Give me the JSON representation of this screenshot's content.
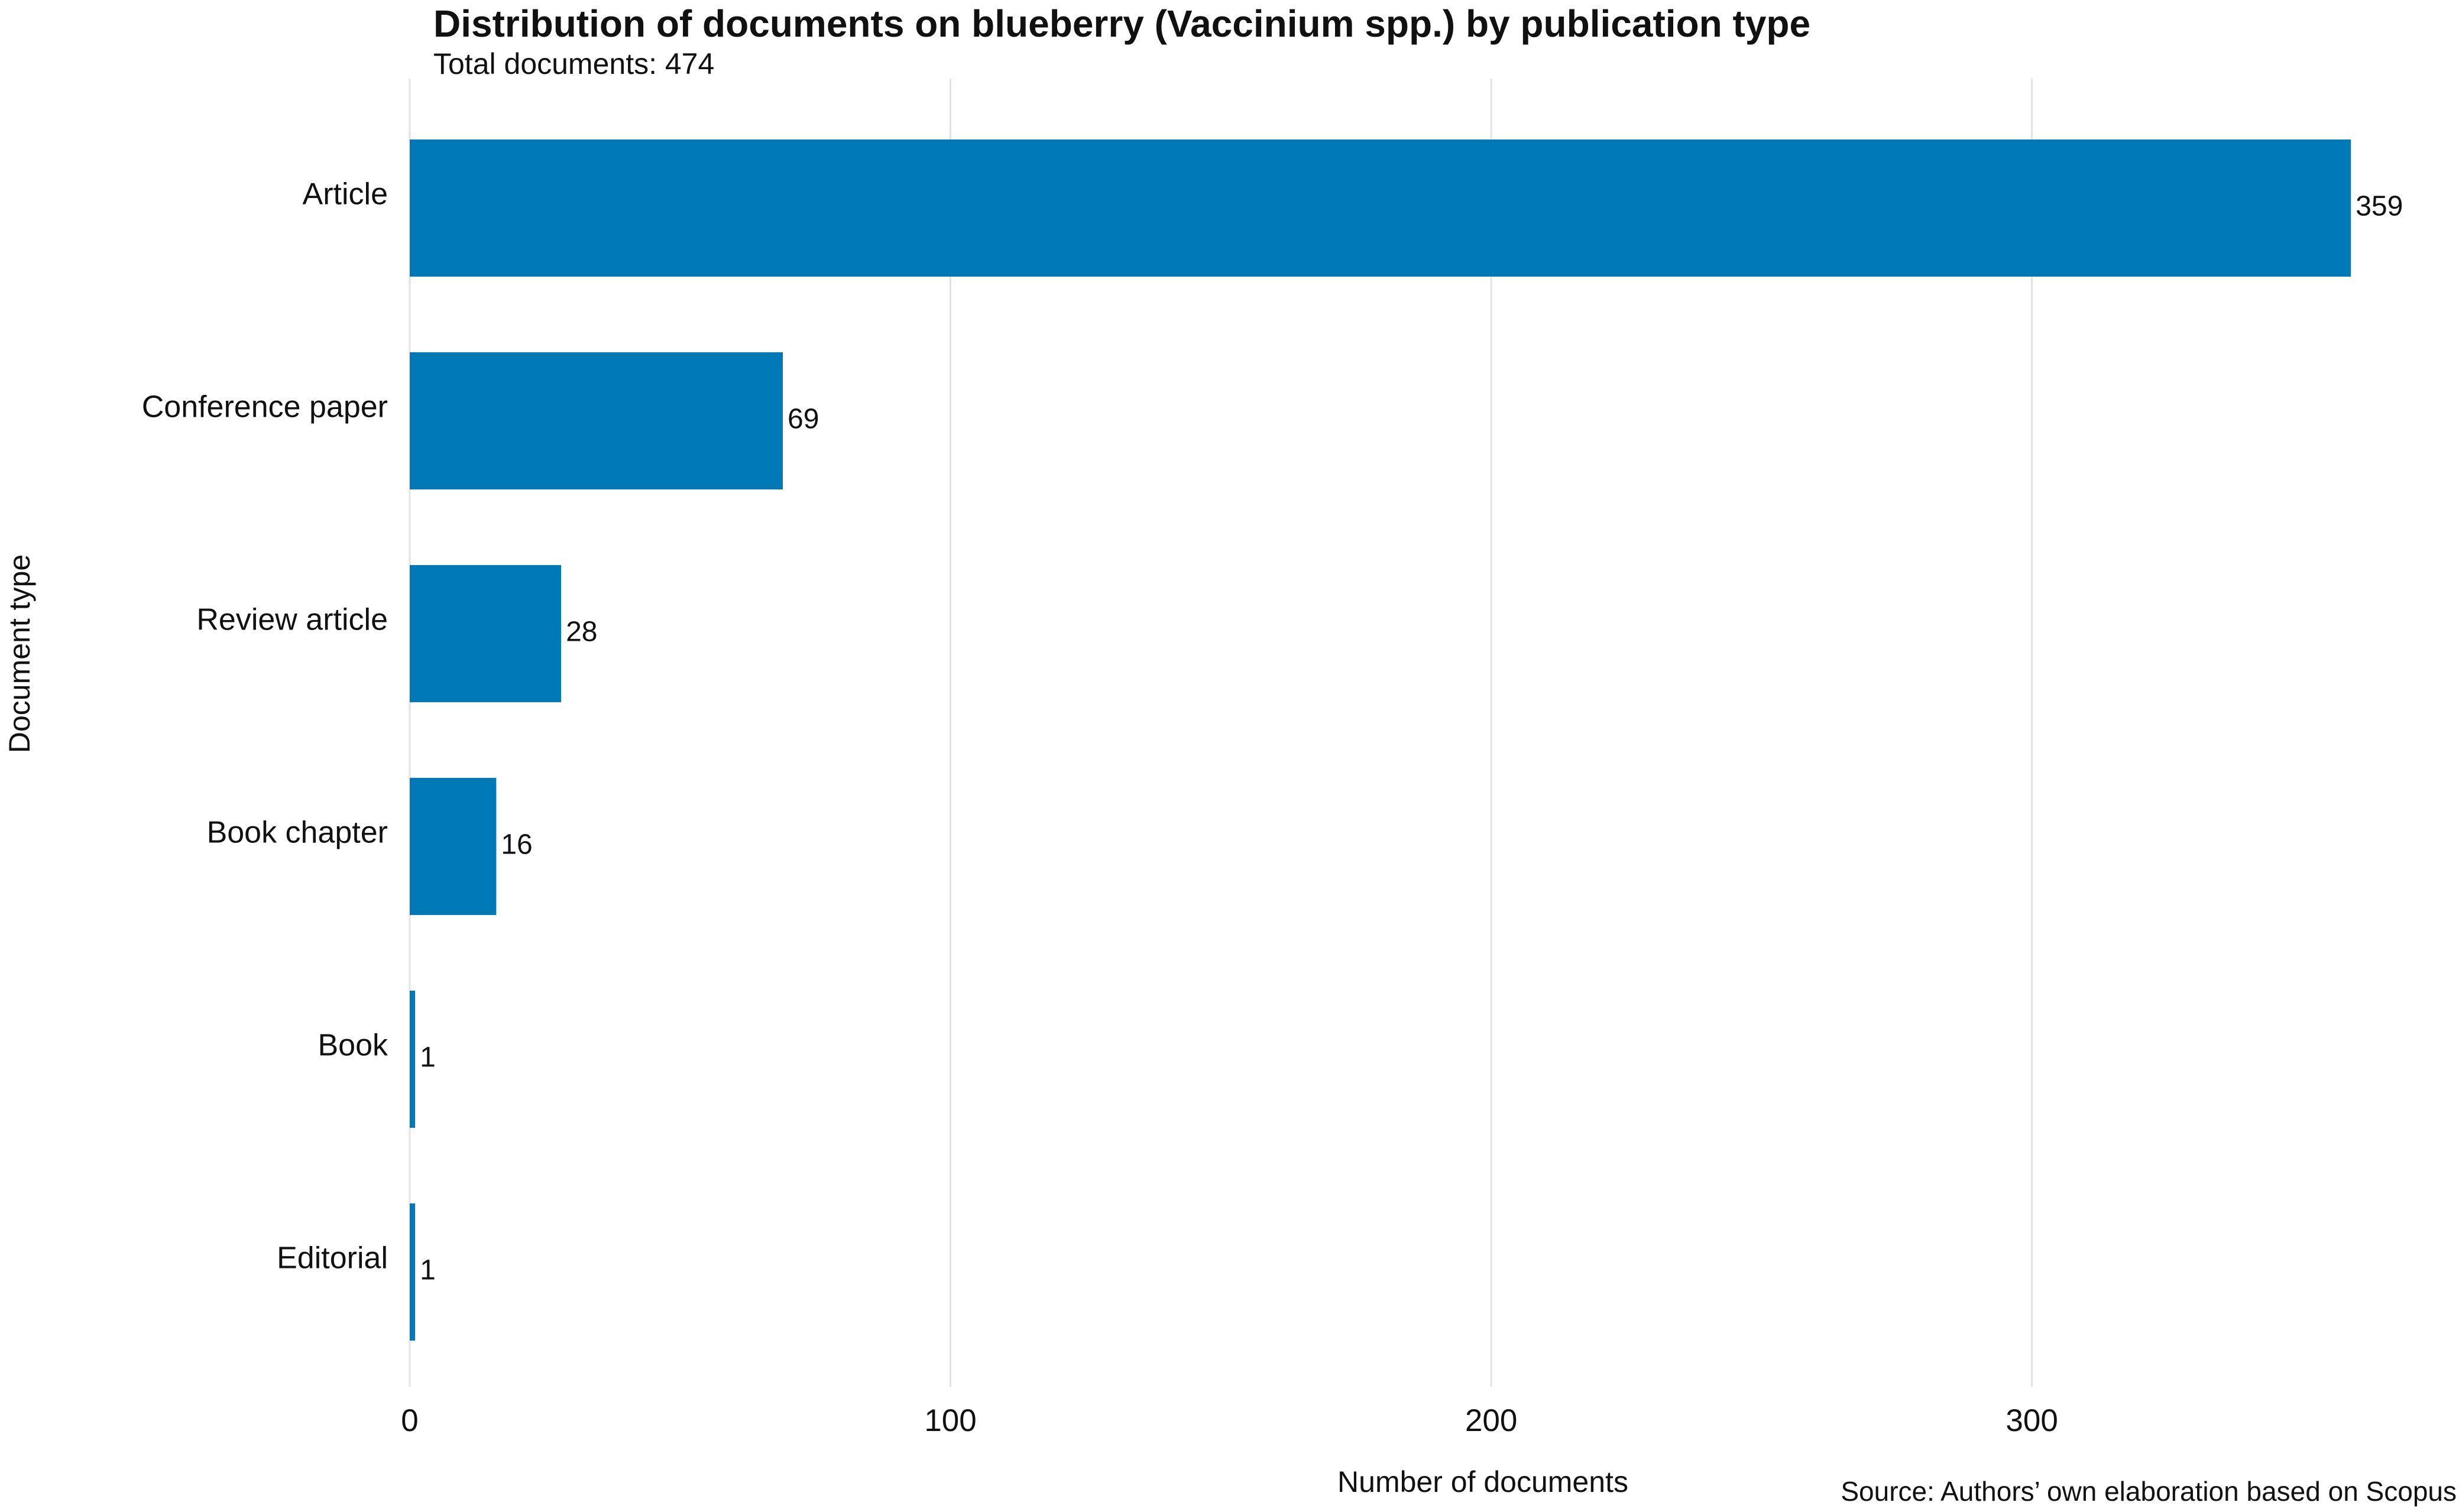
{
  "chart_data": {
    "type": "barh",
    "title": "Distribution of documents on blueberry (Vaccinium spp.) by publication type",
    "subtitle": "Total documents: 474",
    "x_label": "Number of documents",
    "y_label": "Document type",
    "source": "Source: Authors’ own elaboration based on Scopus",
    "categories": [
      "Article",
      "Conference paper",
      "Review article",
      "Book chapter",
      "Book",
      "Editorial"
    ],
    "values": [
      359,
      69,
      28,
      16,
      1,
      1
    ],
    "color": "#0079b8",
    "xlim": [
      0,
      378
    ],
    "xticks": [
      0,
      100,
      200,
      300
    ],
    "grid": true
  }
}
